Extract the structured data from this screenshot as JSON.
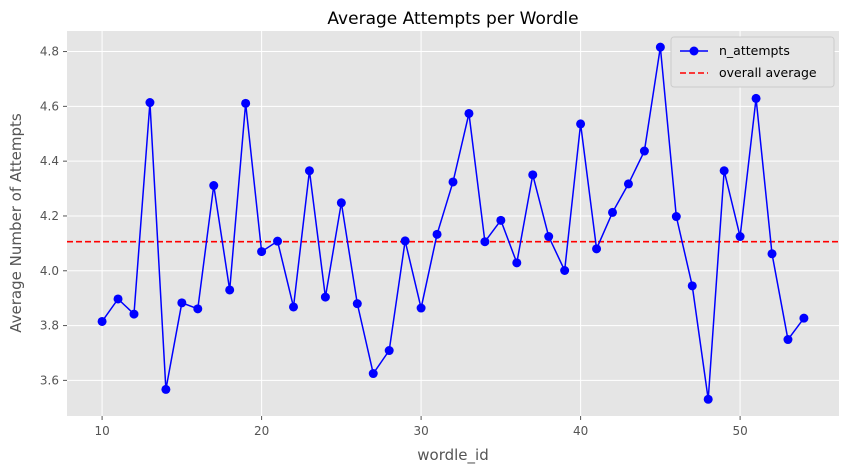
{
  "chart_data": {
    "type": "line",
    "title": "Average Attempts per Wordle",
    "xlabel": "wordle_id",
    "ylabel": "Average Number of Attempts",
    "xlim": [
      7.8,
      56.2
    ],
    "ylim": [
      3.47,
      4.875
    ],
    "xticks": [
      10,
      20,
      30,
      40,
      50
    ],
    "yticks": [
      3.6,
      3.8,
      4.0,
      4.2,
      4.4,
      4.6,
      4.8
    ],
    "ytick_labels": [
      "3.6",
      "3.8",
      "4.0",
      "4.2",
      "4.4",
      "4.6",
      "4.8"
    ],
    "grid": true,
    "legend_position": "top-right",
    "series": [
      {
        "name": "n_attempts",
        "color": "#0000ff",
        "marker": "circle",
        "x": [
          10,
          11,
          12,
          13,
          14,
          15,
          16,
          17,
          18,
          19,
          20,
          21,
          22,
          23,
          24,
          25,
          26,
          27,
          28,
          29,
          30,
          31,
          32,
          33,
          34,
          35,
          36,
          37,
          38,
          39,
          40,
          41,
          42,
          43,
          44,
          45,
          46,
          47,
          48,
          49,
          50,
          51,
          52,
          53,
          54
        ],
        "y": [
          3.815,
          3.897,
          3.842,
          4.614,
          3.567,
          3.883,
          3.861,
          4.311,
          3.93,
          4.611,
          4.07,
          4.108,
          3.868,
          4.365,
          3.904,
          4.248,
          3.88,
          3.625,
          3.709,
          4.109,
          3.864,
          4.133,
          4.324,
          4.574,
          4.106,
          4.184,
          4.029,
          4.35,
          4.125,
          4.001,
          4.536,
          4.08,
          4.213,
          4.317,
          4.437,
          4.816,
          4.198,
          3.945,
          3.531,
          4.365,
          4.125,
          4.629,
          4.062,
          3.749,
          3.827
        ]
      }
    ],
    "reference_lines": [
      {
        "name": "overall average",
        "color": "#ff0000",
        "style": "dashed",
        "y": 4.106
      }
    ]
  }
}
